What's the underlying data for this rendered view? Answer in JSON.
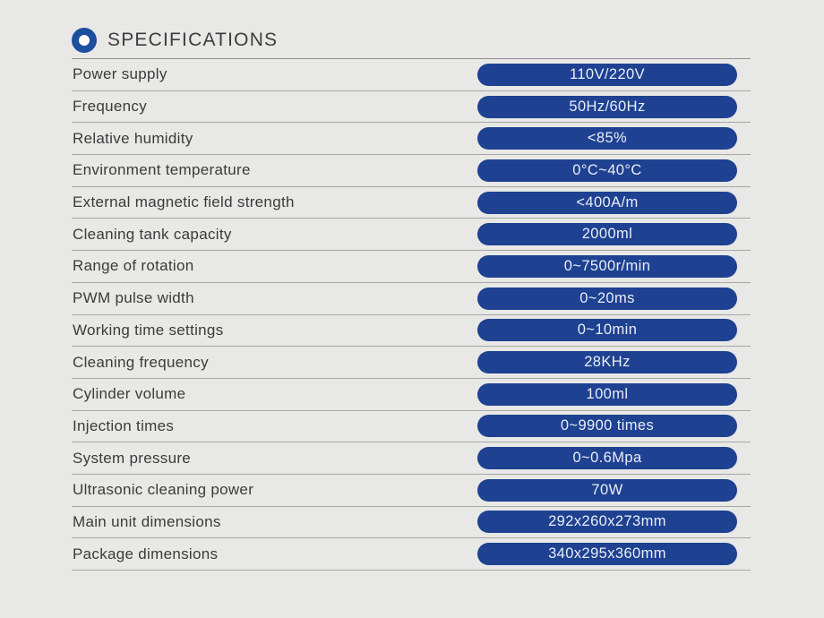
{
  "page": {
    "background_color": "#e8e8e6",
    "accent_color": "#1d4f9e",
    "pill_color": "#1e4191",
    "pill_text_color": "#e9eef7",
    "separator_color": "#a6a6a4"
  },
  "header": {
    "title": "SPECIFICATIONS",
    "icon": "ring-icon"
  },
  "specs": {
    "rows": [
      {
        "label": "Power supply",
        "value": "110V/220V"
      },
      {
        "label": "Frequency",
        "value": "50Hz/60Hz"
      },
      {
        "label": "Relative humidity",
        "value": "<85%"
      },
      {
        "label": "Environment temperature",
        "value": "0°C~40°C"
      },
      {
        "label": "External magnetic field strength",
        "value": "<400A/m"
      },
      {
        "label": "Cleaning tank capacity",
        "value": "2000ml"
      },
      {
        "label": "Range of rotation",
        "value": "0~7500r/min"
      },
      {
        "label": "PWM pulse width",
        "value": "0~20ms"
      },
      {
        "label": "Working time settings",
        "value": "0~10min"
      },
      {
        "label": "Cleaning frequency",
        "value": "28KHz"
      },
      {
        "label": "Cylinder volume",
        "value": "100ml"
      },
      {
        "label": "Injection times",
        "value": "0~9900 times"
      },
      {
        "label": "System pressure",
        "value": "0~0.6Mpa"
      },
      {
        "label": "Ultrasonic cleaning power",
        "value": "70W"
      },
      {
        "label": "Main unit dimensions",
        "value": "292x260x273mm"
      },
      {
        "label": "Package dimensions",
        "value": "340x295x360mm"
      }
    ]
  }
}
